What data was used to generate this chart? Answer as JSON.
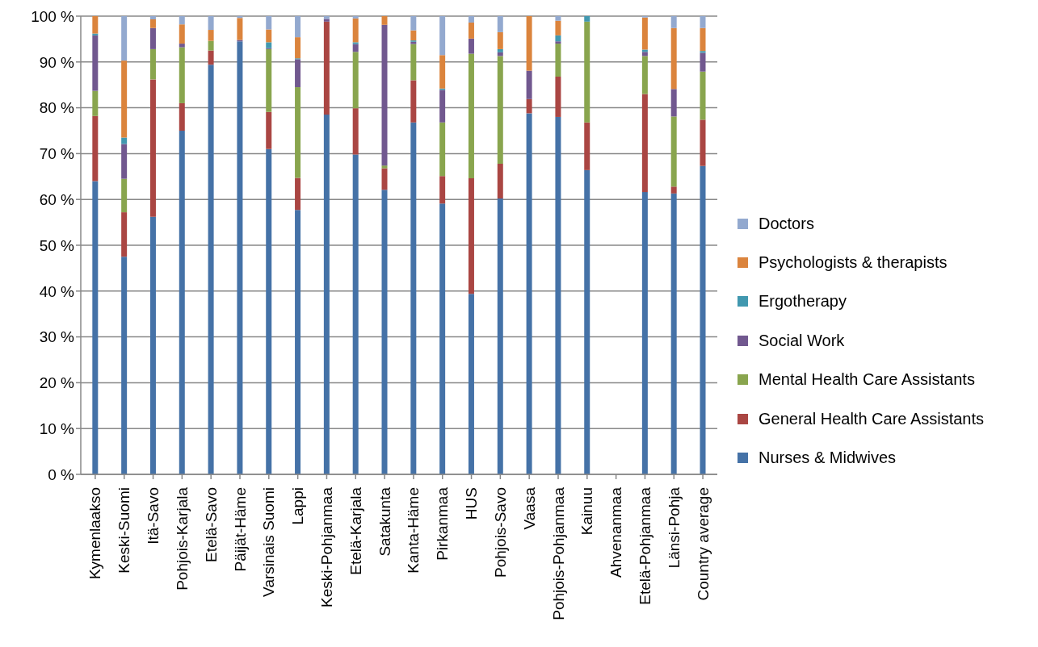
{
  "chart_data": {
    "type": "bar",
    "stacked": true,
    "grid": "y",
    "legend": "right",
    "categories": [
      "Kymenlaakso",
      "Keski-Suomi",
      "Itä-Savo",
      "Pohjois-Karjala",
      "Etelä-Savo",
      "Päijät-Häme",
      "Varsinais Suomi",
      "Lappi",
      "Keski-Pohjanmaa",
      "Etelä-Karjala",
      "Satakunta",
      "Kanta-Häme",
      "Pirkanmaa",
      "HUS",
      "Pohjois-Savo",
      "Vaasa",
      "Pohjois-Pohjanmaa",
      "Kainuu",
      "Ahvenanmaa",
      "Etelä-Pohjanmaa",
      "Länsi-Pohja",
      "Country average"
    ],
    "ylim": [
      0,
      100
    ],
    "yticks": [
      {
        "value": 0,
        "label": "0 %"
      },
      {
        "value": 10,
        "label": "10 %"
      },
      {
        "value": 20,
        "label": "20 %"
      },
      {
        "value": 30,
        "label": "30 %"
      },
      {
        "value": 40,
        "label": "40 %"
      },
      {
        "value": 50,
        "label": "50 %"
      },
      {
        "value": 60,
        "label": "60 %"
      },
      {
        "value": 70,
        "label": "70 %"
      },
      {
        "value": 80,
        "label": "80 %"
      },
      {
        "value": 90,
        "label": "90 %"
      },
      {
        "value": 100,
        "label": "100 %"
      }
    ],
    "series": [
      {
        "name": "Nurses & Midwives",
        "color": "#4572a7",
        "values": [
          64,
          47.5,
          56.2,
          75,
          89.4,
          94.5,
          71,
          57.7,
          78.5,
          69.8,
          62.1,
          76.8,
          59.1,
          39.4,
          60.2,
          78.8,
          78,
          66.4,
          null,
          61.6,
          61.3,
          67.3
        ]
      },
      {
        "name": "General Health Care Assistants",
        "color": "#aa4643",
        "values": [
          14.2,
          9.7,
          30,
          6,
          3.1,
          0,
          8.1,
          7,
          20.3,
          10.1,
          4.7,
          9.2,
          6,
          25.2,
          7.6,
          3.1,
          8.8,
          10.4,
          null,
          21.4,
          1.5,
          10.1
        ]
      },
      {
        "name": "Mental Health Care Assistants",
        "color": "#89a54e",
        "values": [
          5.5,
          7.3,
          6.6,
          12.2,
          2.1,
          0,
          13.7,
          19.8,
          0,
          12.3,
          0.6,
          7.9,
          11.7,
          27.2,
          23.5,
          0,
          7.2,
          22,
          null,
          8.3,
          15.3,
          10.5
        ]
      },
      {
        "name": "Social Work",
        "color": "#71588f",
        "values": [
          12.1,
          7.6,
          4.6,
          0.8,
          0,
          0.3,
          0.2,
          6.1,
          0.6,
          1.7,
          30.7,
          0.5,
          7.1,
          3.3,
          0.8,
          6.2,
          0.5,
          0,
          null,
          0.9,
          6,
          4.1
        ]
      },
      {
        "name": "Ergotherapy",
        "color": "#4198af",
        "values": [
          0.4,
          1.4,
          0,
          0,
          0,
          0,
          1.3,
          0.2,
          0,
          0.4,
          0,
          0.3,
          0.3,
          0,
          0.7,
          0,
          1.3,
          1.2,
          null,
          0.5,
          0,
          0.4
        ]
      },
      {
        "name": "Psychologists & therapists",
        "color": "#db843d",
        "values": [
          3.8,
          16.8,
          1.9,
          4.2,
          2.4,
          4.8,
          2.8,
          4.6,
          0,
          5.2,
          1.9,
          2.2,
          7.3,
          3.5,
          3.7,
          11.9,
          3.2,
          0,
          null,
          7,
          13.3,
          5
        ]
      },
      {
        "name": "Doctors",
        "color": "#93a9cf",
        "values": [
          0,
          9.7,
          0.7,
          1.8,
          3,
          0.4,
          2.9,
          4.6,
          0.6,
          0.5,
          0,
          3.1,
          8.5,
          1.4,
          3.5,
          0,
          1,
          0,
          null,
          0.3,
          2.6,
          2.6
        ]
      }
    ]
  }
}
